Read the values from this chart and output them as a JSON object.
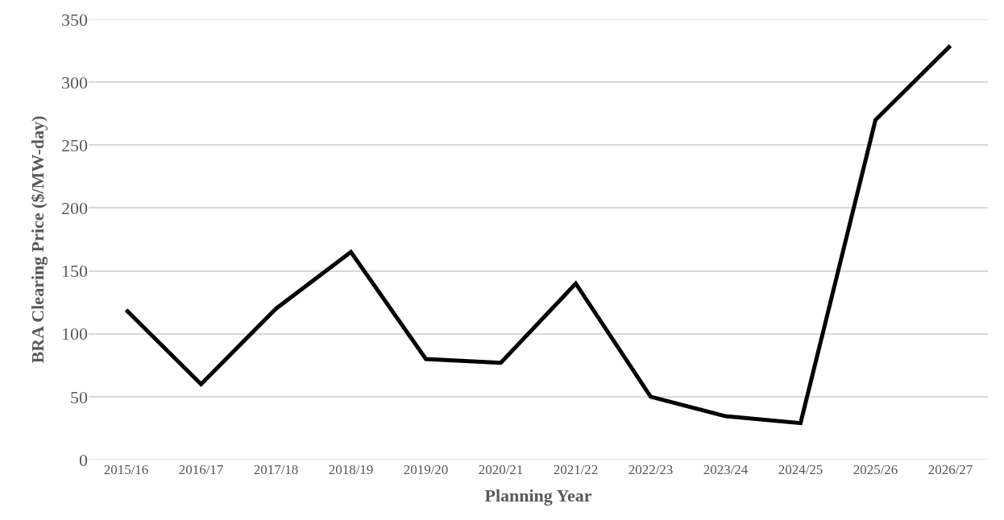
{
  "chart_data": {
    "type": "line",
    "xlabel": "Planning Year",
    "ylabel": "BRA Clearing Price ($/MW-day)",
    "categories": [
      "2015/16",
      "2016/17",
      "2017/18",
      "2018/19",
      "2019/20",
      "2020/21",
      "2021/22",
      "2022/23",
      "2023/24",
      "2024/25",
      "2025/26",
      "2026/27"
    ],
    "series": [
      {
        "color": "#000000",
        "values": [
          119,
          60,
          120,
          165,
          80,
          77,
          140,
          50,
          34.5,
          29,
          270,
          329
        ]
      }
    ],
    "ylim": [
      0,
      350
    ],
    "yticks": [
      0,
      50,
      100,
      150,
      200,
      250,
      300,
      350
    ],
    "grid": "y",
    "marker": "none",
    "line_style": "solid"
  }
}
